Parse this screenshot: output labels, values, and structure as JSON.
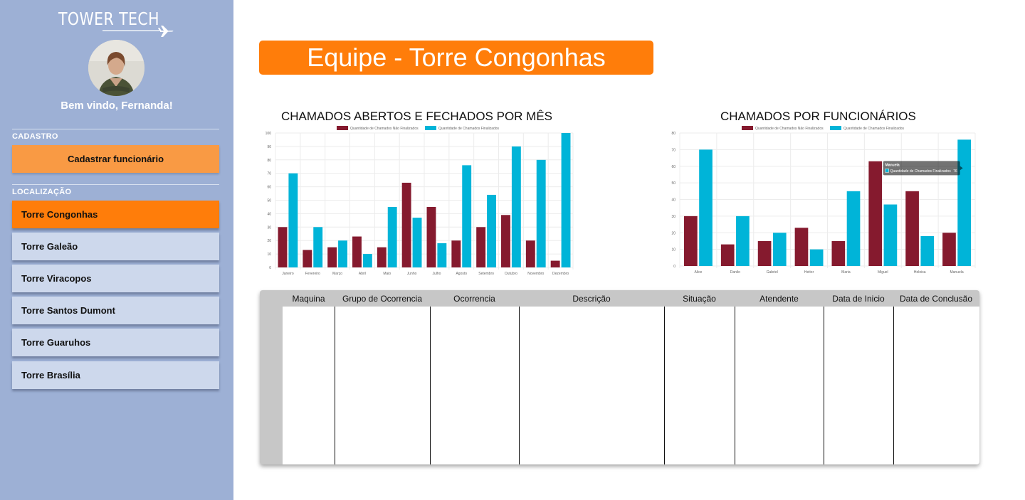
{
  "brand": {
    "logo_text": "TOWER TECH"
  },
  "user": {
    "welcome": "Bem vindo, Fernanda!"
  },
  "sidebar": {
    "cadastro_label": "CADASTRO",
    "register_button": "Cadastrar funcionário",
    "localizacao_label": "LOCALIZAÇÃO",
    "locations": [
      {
        "label": "Torre Congonhas",
        "active": true
      },
      {
        "label": "Torre Galeão",
        "active": false
      },
      {
        "label": "Torre Viracopos",
        "active": false
      },
      {
        "label": "Torre Santos Dumont",
        "active": false
      },
      {
        "label": "Torre Guaruhos",
        "active": false
      },
      {
        "label": "Torre Brasília",
        "active": false
      }
    ]
  },
  "page": {
    "title": "Equipe - Torre Congonhas"
  },
  "colors": {
    "series_not_finalized": "#851a2e",
    "series_finalized": "#00b4d8",
    "accent": "#ff7d0a",
    "sidebar_bg": "#9db0d5"
  },
  "chart_data": [
    {
      "type": "bar",
      "title": "CHAMADOS ABERTOS E FECHADOS POR MÊS",
      "categories": [
        "Janeiro",
        "Fevereiro",
        "Março",
        "Abril",
        "Maio",
        "Junho",
        "Julho",
        "Agosto",
        "Setembro",
        "Outubro",
        "Novembro",
        "Dezembro"
      ],
      "series": [
        {
          "name": "Quantidade de Chamados Não Finalizados",
          "values": [
            30,
            13,
            15,
            23,
            15,
            63,
            45,
            20,
            30,
            39,
            20,
            5
          ]
        },
        {
          "name": "Quantidade de Chamados Finalizados",
          "values": [
            70,
            30,
            20,
            10,
            45,
            37,
            18,
            76,
            54,
            90,
            80,
            100
          ]
        }
      ],
      "ylim": [
        0,
        100
      ],
      "yticks": [
        0,
        10,
        20,
        30,
        40,
        50,
        60,
        70,
        80,
        90,
        100
      ],
      "grid": true,
      "legend": "top"
    },
    {
      "type": "bar",
      "title": "CHAMADOS POR FUNCIONÁRIOS",
      "categories": [
        "Alice",
        "Danilo",
        "Gabriel",
        "Heitor",
        "Maria",
        "Miguel",
        "Heloisa",
        "Manuela"
      ],
      "series": [
        {
          "name": "Quantidade de Chamados Não Finalizados",
          "values": [
            30,
            13,
            15,
            23,
            15,
            63,
            45,
            20
          ]
        },
        {
          "name": "Quantidade de Chamados Finalizados",
          "values": [
            70,
            30,
            20,
            10,
            45,
            37,
            18,
            76
          ]
        }
      ],
      "ylim": [
        0,
        80
      ],
      "yticks": [
        0,
        10,
        20,
        30,
        40,
        50,
        60,
        70,
        80
      ],
      "grid": true,
      "legend": "top",
      "tooltip": {
        "title": "Manuela",
        "series": "Quantidade de Chamados Finalizados",
        "value": 76
      }
    }
  ],
  "table": {
    "headers": [
      "Maquina",
      "Grupo de Ocorrencia",
      "Ocorrencia",
      "Descrição",
      "Situação",
      "Atendente",
      "Data de Inicio",
      "Data de Conclusão"
    ]
  }
}
